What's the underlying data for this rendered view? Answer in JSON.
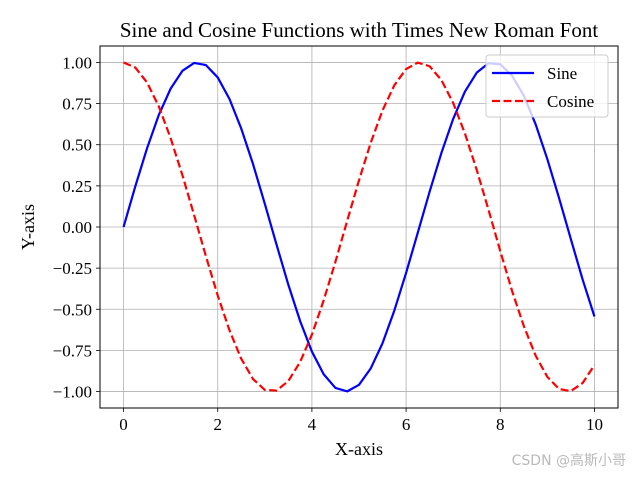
{
  "chart_data": {
    "type": "line",
    "title": "Sine and Cosine Functions with Times New Roman Font",
    "xlabel": "X-axis",
    "ylabel": "Y-axis",
    "xlim": [
      -0.5,
      10.5
    ],
    "ylim": [
      -1.1,
      1.1
    ],
    "x_ticks": [
      0,
      2,
      4,
      6,
      8,
      10
    ],
    "y_ticks": [
      -1.0,
      -0.75,
      -0.5,
      -0.25,
      0.0,
      0.25,
      0.5,
      0.75,
      1.0
    ],
    "x_tick_labels": [
      "0",
      "2",
      "4",
      "6",
      "8",
      "10"
    ],
    "y_tick_labels": [
      "−1.00",
      "−0.75",
      "−0.50",
      "−0.25",
      "0.00",
      "0.25",
      "0.50",
      "0.75",
      "1.00"
    ],
    "grid": true,
    "legend_position": "top-right",
    "x": [
      0.0,
      0.25,
      0.5,
      0.75,
      1.0,
      1.25,
      1.5,
      1.75,
      2.0,
      2.25,
      2.5,
      2.75,
      3.0,
      3.25,
      3.5,
      3.75,
      4.0,
      4.25,
      4.5,
      4.75,
      5.0,
      5.25,
      5.5,
      5.75,
      6.0,
      6.25,
      6.5,
      6.75,
      7.0,
      7.25,
      7.5,
      7.75,
      8.0,
      8.25,
      8.5,
      8.75,
      9.0,
      9.25,
      9.5,
      9.75,
      10.0
    ],
    "series": [
      {
        "name": "Sine",
        "color": "#0000ff",
        "dash": "solid",
        "values": [
          0.0,
          0.247,
          0.479,
          0.682,
          0.841,
          0.949,
          0.997,
          0.984,
          0.909,
          0.778,
          0.598,
          0.382,
          0.141,
          -0.108,
          -0.351,
          -0.572,
          -0.757,
          -0.895,
          -0.978,
          -0.999,
          -0.959,
          -0.859,
          -0.706,
          -0.508,
          -0.279,
          -0.033,
          0.215,
          0.45,
          0.657,
          0.823,
          0.938,
          0.995,
          0.989,
          0.92,
          0.798,
          0.625,
          0.412,
          0.174,
          -0.075,
          -0.32,
          -0.544
        ]
      },
      {
        "name": "Cosine",
        "color": "#ff0000",
        "dash": "dashed",
        "values": [
          1.0,
          0.969,
          0.878,
          0.732,
          0.54,
          0.315,
          0.071,
          -0.178,
          -0.416,
          -0.628,
          -0.801,
          -0.924,
          -0.99,
          -0.994,
          -0.936,
          -0.82,
          -0.654,
          -0.446,
          -0.211,
          0.038,
          0.284,
          0.512,
          0.709,
          0.861,
          0.96,
          0.999,
          0.977,
          0.893,
          0.754,
          0.568,
          0.347,
          0.105,
          -0.146,
          -0.388,
          -0.602,
          -0.781,
          -0.911,
          -0.985,
          -0.997,
          -0.948,
          -0.839
        ]
      }
    ]
  },
  "watermark": "CSDN @高斯小哥"
}
